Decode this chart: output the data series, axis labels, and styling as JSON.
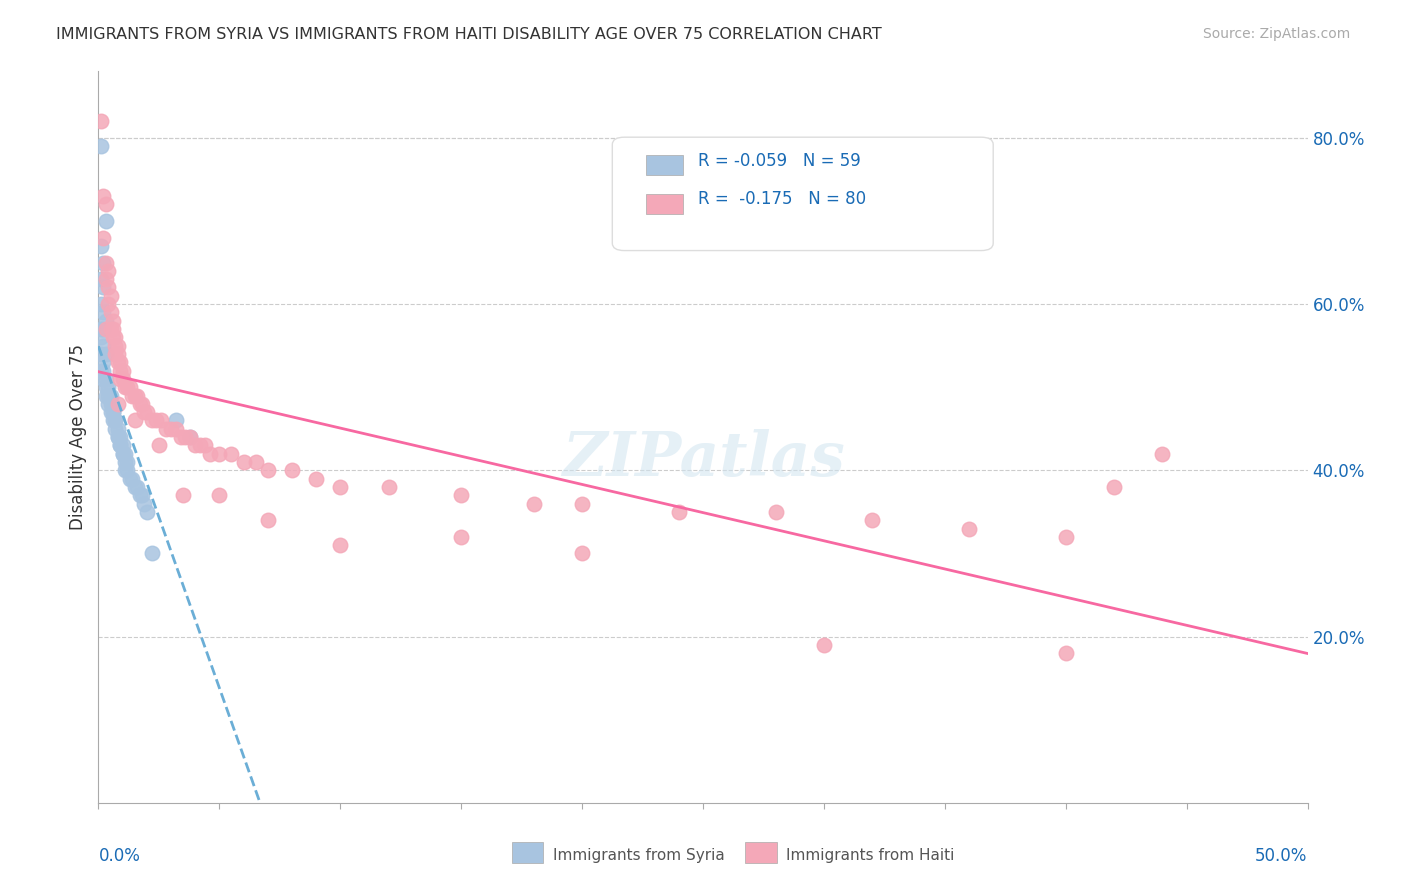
{
  "title": "IMMIGRANTS FROM SYRIA VS IMMIGRANTS FROM HAITI DISABILITY AGE OVER 75 CORRELATION CHART",
  "source": "Source: ZipAtlas.com",
  "ylabel": "Disability Age Over 75",
  "right_yticks": [
    0.2,
    0.4,
    0.6,
    0.8
  ],
  "right_yticklabels": [
    "20.0%",
    "40.0%",
    "60.0%",
    "80.0%"
  ],
  "xlim": [
    0.0,
    0.5
  ],
  "ylim": [
    0.0,
    0.88
  ],
  "syria_R": -0.059,
  "syria_N": 59,
  "haiti_R": -0.175,
  "haiti_N": 80,
  "syria_color": "#a8c4e0",
  "haiti_color": "#f4a8b8",
  "syria_line_color": "#6baed6",
  "haiti_line_color": "#f768a1",
  "legend_text_color": "#1a6bb5",
  "watermark": "ZIPatlas",
  "syria_x": [
    0.001,
    0.003,
    0.001,
    0.002,
    0.001,
    0.002,
    0.001,
    0.002,
    0.003,
    0.001,
    0.002,
    0.001,
    0.002,
    0.003,
    0.001,
    0.002,
    0.001,
    0.002,
    0.003,
    0.002,
    0.003,
    0.004,
    0.003,
    0.004,
    0.005,
    0.004,
    0.005,
    0.006,
    0.005,
    0.006,
    0.007,
    0.006,
    0.007,
    0.008,
    0.007,
    0.008,
    0.009,
    0.008,
    0.009,
    0.01,
    0.009,
    0.01,
    0.011,
    0.01,
    0.011,
    0.012,
    0.011,
    0.012,
    0.013,
    0.014,
    0.015,
    0.016,
    0.017,
    0.018,
    0.019,
    0.02,
    0.022,
    0.032,
    0.038
  ],
  "syria_y": [
    0.79,
    0.7,
    0.67,
    0.65,
    0.63,
    0.62,
    0.6,
    0.59,
    0.58,
    0.57,
    0.57,
    0.56,
    0.55,
    0.54,
    0.54,
    0.53,
    0.52,
    0.52,
    0.51,
    0.51,
    0.5,
    0.5,
    0.49,
    0.49,
    0.49,
    0.48,
    0.48,
    0.47,
    0.47,
    0.47,
    0.46,
    0.46,
    0.46,
    0.45,
    0.45,
    0.44,
    0.44,
    0.44,
    0.43,
    0.43,
    0.43,
    0.42,
    0.42,
    0.42,
    0.41,
    0.41,
    0.4,
    0.4,
    0.39,
    0.39,
    0.38,
    0.38,
    0.37,
    0.37,
    0.36,
    0.35,
    0.3,
    0.46,
    0.44
  ],
  "haiti_x": [
    0.001,
    0.002,
    0.003,
    0.002,
    0.003,
    0.004,
    0.003,
    0.004,
    0.005,
    0.004,
    0.005,
    0.006,
    0.005,
    0.006,
    0.007,
    0.006,
    0.007,
    0.008,
    0.007,
    0.008,
    0.009,
    0.008,
    0.009,
    0.01,
    0.009,
    0.01,
    0.011,
    0.012,
    0.013,
    0.014,
    0.015,
    0.016,
    0.017,
    0.018,
    0.019,
    0.02,
    0.022,
    0.024,
    0.026,
    0.028,
    0.03,
    0.032,
    0.034,
    0.036,
    0.038,
    0.04,
    0.042,
    0.044,
    0.046,
    0.05,
    0.055,
    0.06,
    0.065,
    0.07,
    0.08,
    0.09,
    0.1,
    0.12,
    0.15,
    0.18,
    0.2,
    0.24,
    0.28,
    0.32,
    0.36,
    0.4,
    0.44,
    0.003,
    0.008,
    0.015,
    0.025,
    0.035,
    0.05,
    0.07,
    0.1,
    0.15,
    0.2,
    0.3,
    0.4,
    0.42
  ],
  "haiti_y": [
    0.82,
    0.73,
    0.72,
    0.68,
    0.65,
    0.64,
    0.63,
    0.62,
    0.61,
    0.6,
    0.59,
    0.58,
    0.57,
    0.57,
    0.56,
    0.56,
    0.55,
    0.55,
    0.54,
    0.54,
    0.53,
    0.53,
    0.52,
    0.52,
    0.51,
    0.51,
    0.5,
    0.5,
    0.5,
    0.49,
    0.49,
    0.49,
    0.48,
    0.48,
    0.47,
    0.47,
    0.46,
    0.46,
    0.46,
    0.45,
    0.45,
    0.45,
    0.44,
    0.44,
    0.44,
    0.43,
    0.43,
    0.43,
    0.42,
    0.42,
    0.42,
    0.41,
    0.41,
    0.4,
    0.4,
    0.39,
    0.38,
    0.38,
    0.37,
    0.36,
    0.36,
    0.35,
    0.35,
    0.34,
    0.33,
    0.32,
    0.42,
    0.57,
    0.48,
    0.46,
    0.43,
    0.37,
    0.37,
    0.34,
    0.31,
    0.32,
    0.3,
    0.19,
    0.18,
    0.38
  ]
}
